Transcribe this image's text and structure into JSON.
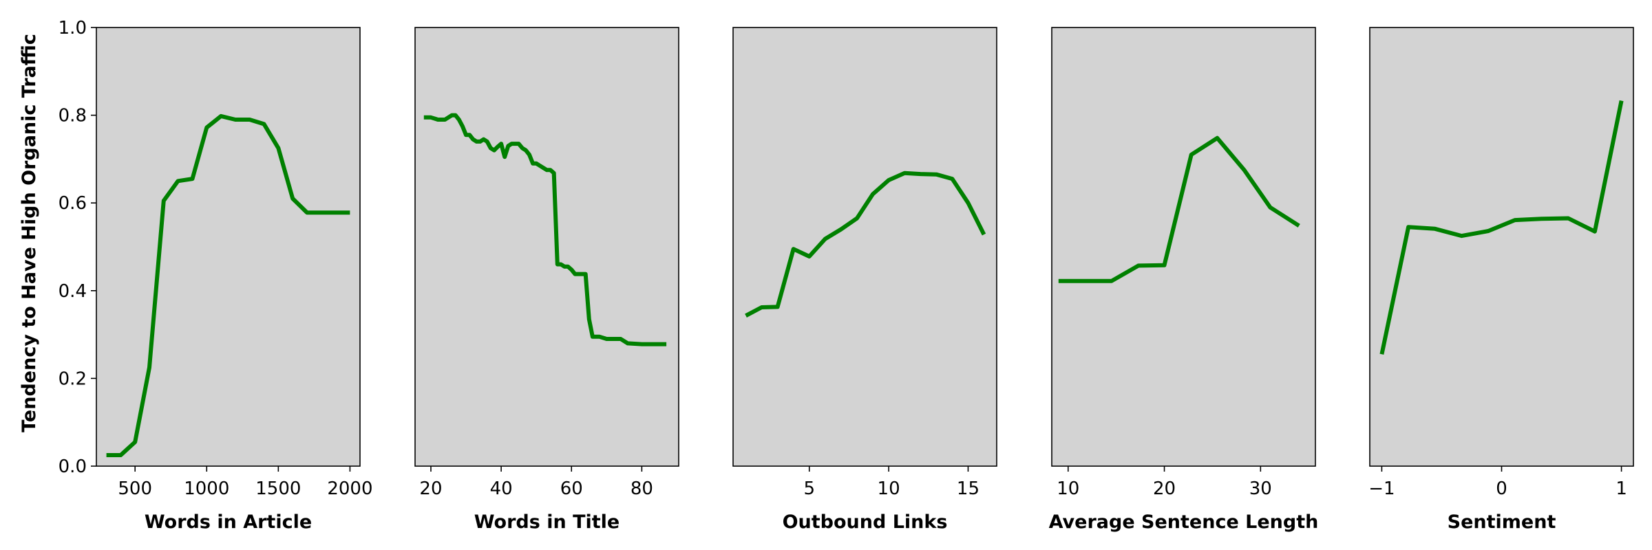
{
  "figure": {
    "ylabel": "Tendency to Have High Organic Traffic",
    "line_color": "#008000",
    "panel_bg": "#d3d3d3"
  },
  "chart_data": [
    {
      "type": "line",
      "xlabel": "Words in Article",
      "ylabel": "Tendency to Have High Organic Traffic",
      "xlim": [
        230,
        2070
      ],
      "ylim": [
        0.0,
        1.0
      ],
      "xticks": [
        500,
        1000,
        1500,
        2000
      ],
      "yticks": [
        0.0,
        0.2,
        0.4,
        0.6,
        0.8,
        1.0
      ],
      "x": [
        300,
        400,
        500,
        600,
        700,
        800,
        900,
        1000,
        1100,
        1200,
        1300,
        1400,
        1500,
        1600,
        1700,
        1800,
        1900,
        2000
      ],
      "y": [
        0.025,
        0.025,
        0.055,
        0.225,
        0.605,
        0.65,
        0.655,
        0.772,
        0.798,
        0.79,
        0.79,
        0.78,
        0.725,
        0.61,
        0.578,
        0.578,
        0.578,
        0.578
      ]
    },
    {
      "type": "line",
      "xlabel": "Words in Title",
      "xlim": [
        15.5,
        90.5
      ],
      "ylim": [
        0.0,
        1.0
      ],
      "xticks": [
        20,
        40,
        60,
        80
      ],
      "x": [
        18,
        20,
        22,
        24,
        26,
        27,
        28,
        29,
        30,
        31,
        32,
        33,
        34,
        35,
        36,
        37,
        38,
        39,
        40,
        41,
        42,
        43,
        44,
        45,
        46,
        47,
        48,
        49,
        50,
        51,
        52,
        53,
        54,
        55,
        56,
        57,
        58,
        59,
        60,
        61,
        62,
        63,
        64,
        65,
        66,
        67,
        68,
        70,
        72,
        74,
        76,
        80,
        84,
        87
      ],
      "y": [
        0.795,
        0.795,
        0.79,
        0.79,
        0.8,
        0.8,
        0.79,
        0.775,
        0.755,
        0.755,
        0.745,
        0.74,
        0.74,
        0.745,
        0.74,
        0.725,
        0.72,
        0.728,
        0.735,
        0.705,
        0.73,
        0.735,
        0.735,
        0.735,
        0.725,
        0.72,
        0.71,
        0.69,
        0.69,
        0.685,
        0.68,
        0.675,
        0.675,
        0.668,
        0.46,
        0.46,
        0.455,
        0.455,
        0.448,
        0.438,
        0.438,
        0.438,
        0.438,
        0.335,
        0.295,
        0.295,
        0.295,
        0.29,
        0.29,
        0.29,
        0.28,
        0.278,
        0.278,
        0.278
      ]
    },
    {
      "type": "line",
      "xlabel": "Outbound Links",
      "xlim": [
        0.2,
        16.8
      ],
      "ylim": [
        0.0,
        1.0
      ],
      "xticks": [
        5,
        10,
        15
      ],
      "x": [
        1,
        2,
        3,
        4,
        5,
        6,
        7,
        8,
        9,
        10,
        11,
        12,
        13,
        14,
        15,
        16
      ],
      "y": [
        0.343,
        0.362,
        0.363,
        0.495,
        0.478,
        0.518,
        0.54,
        0.565,
        0.62,
        0.652,
        0.668,
        0.666,
        0.665,
        0.655,
        0.6,
        0.528
      ]
    },
    {
      "type": "line",
      "xlabel": "Average Sentence Length",
      "xlim": [
        8.3,
        35.7
      ],
      "ylim": [
        0.0,
        1.0
      ],
      "xticks": [
        10,
        20,
        30
      ],
      "x": [
        9,
        11.8,
        14.5,
        17.3,
        20,
        22.8,
        25.5,
        28.3,
        31,
        34
      ],
      "y": [
        0.422,
        0.422,
        0.422,
        0.457,
        0.458,
        0.71,
        0.748,
        0.675,
        0.59,
        0.548
      ]
    },
    {
      "type": "line",
      "xlabel": "Sentiment",
      "xlim": [
        -1.1,
        1.1
      ],
      "ylim": [
        0.0,
        1.0
      ],
      "xticks": [
        -1,
        0,
        1
      ],
      "xtick_labels": [
        "−1",
        "0",
        "1"
      ],
      "x": [
        -1.0,
        -0.778,
        -0.556,
        -0.333,
        -0.111,
        0.111,
        0.333,
        0.556,
        0.778,
        1.0
      ],
      "y": [
        0.255,
        0.545,
        0.541,
        0.525,
        0.536,
        0.561,
        0.564,
        0.565,
        0.535,
        0.833
      ]
    }
  ]
}
